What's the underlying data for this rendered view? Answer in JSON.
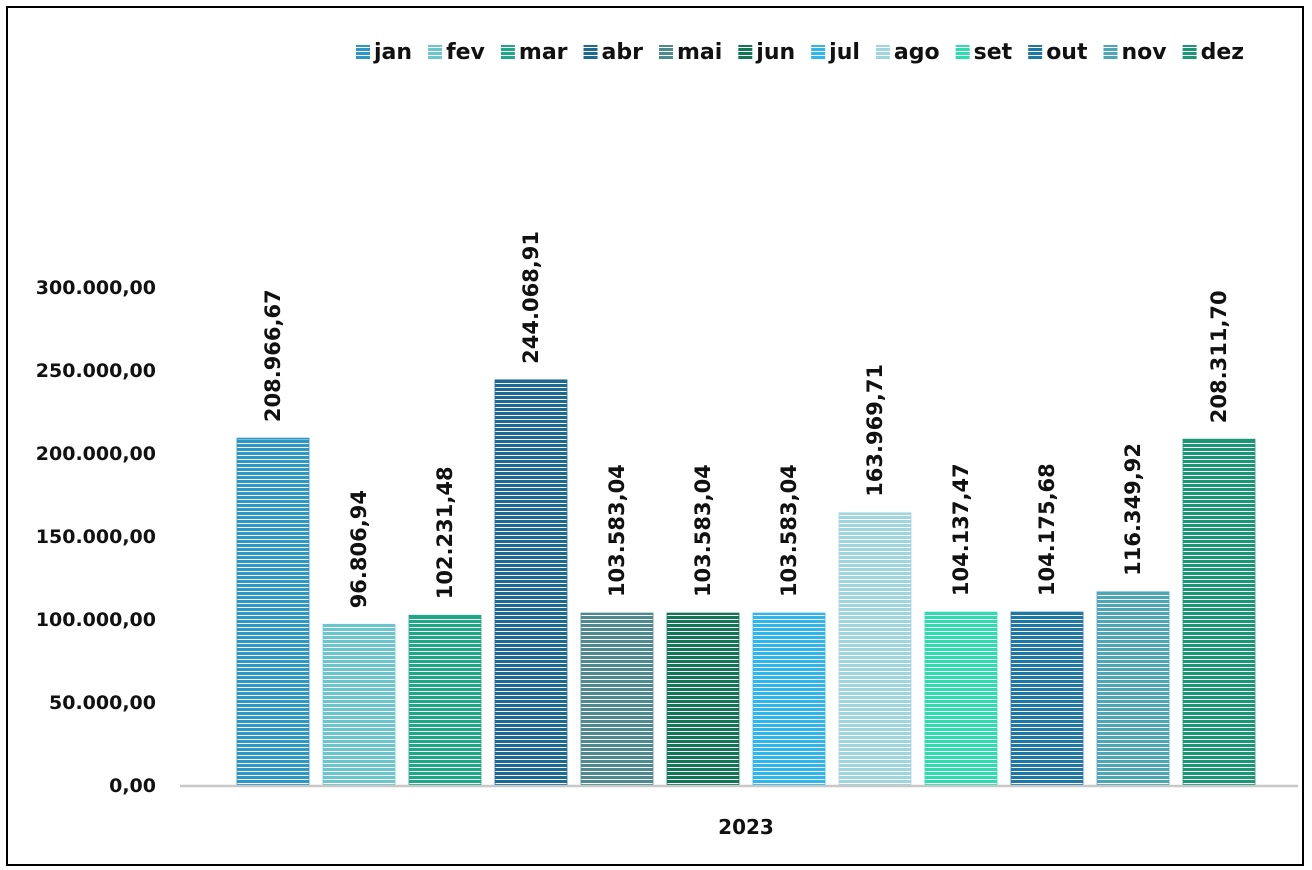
{
  "chart_data": {
    "type": "bar",
    "categories": [
      "2023"
    ],
    "series": [
      {
        "name": "jan",
        "values": [
          208966.67
        ],
        "label": "208.966,67",
        "color": "#2e97c3"
      },
      {
        "name": "fev",
        "values": [
          96806.94
        ],
        "label": "96.806,94",
        "color": "#6cc6cd"
      },
      {
        "name": "mar",
        "values": [
          102231.48
        ],
        "label": "102.231,48",
        "color": "#1fa885"
      },
      {
        "name": "abr",
        "values": [
          244068.91
        ],
        "label": "244.068,91",
        "color": "#1c6a92"
      },
      {
        "name": "mai",
        "values": [
          103583.04
        ],
        "label": "103.583,04",
        "color": "#4c8a8e"
      },
      {
        "name": "jun",
        "values": [
          103583.04
        ],
        "label": "103.583,04",
        "color": "#127656"
      },
      {
        "name": "jul",
        "values": [
          103583.04
        ],
        "label": "103.583,04",
        "color": "#2fb6ea"
      },
      {
        "name": "ago",
        "values": [
          163969.71
        ],
        "label": "163.969,71",
        "color": "#9fd6de"
      },
      {
        "name": "set",
        "values": [
          104137.47
        ],
        "label": "104.137,47",
        "color": "#2fdcaf"
      },
      {
        "name": "out",
        "values": [
          104175.68
        ],
        "label": "104.175,68",
        "color": "#1e78a4"
      },
      {
        "name": "nov",
        "values": [
          116349.92
        ],
        "label": "116.349,92",
        "color": "#4ca6b5"
      },
      {
        "name": "dez",
        "values": [
          208311.7
        ],
        "label": "208.311,70",
        "color": "#1b9775"
      }
    ],
    "yticks": [
      0,
      50000,
      100000,
      150000,
      200000,
      250000,
      300000
    ],
    "ytick_labels": [
      "0,00",
      "50.000,00",
      "100.000,00",
      "150.000,00",
      "200.000,00",
      "250.000,00",
      "300.000,00"
    ],
    "ylim": [
      0,
      300000
    ],
    "grid": false,
    "legend_position": "top",
    "title": "",
    "xlabel": "",
    "ylabel": ""
  }
}
